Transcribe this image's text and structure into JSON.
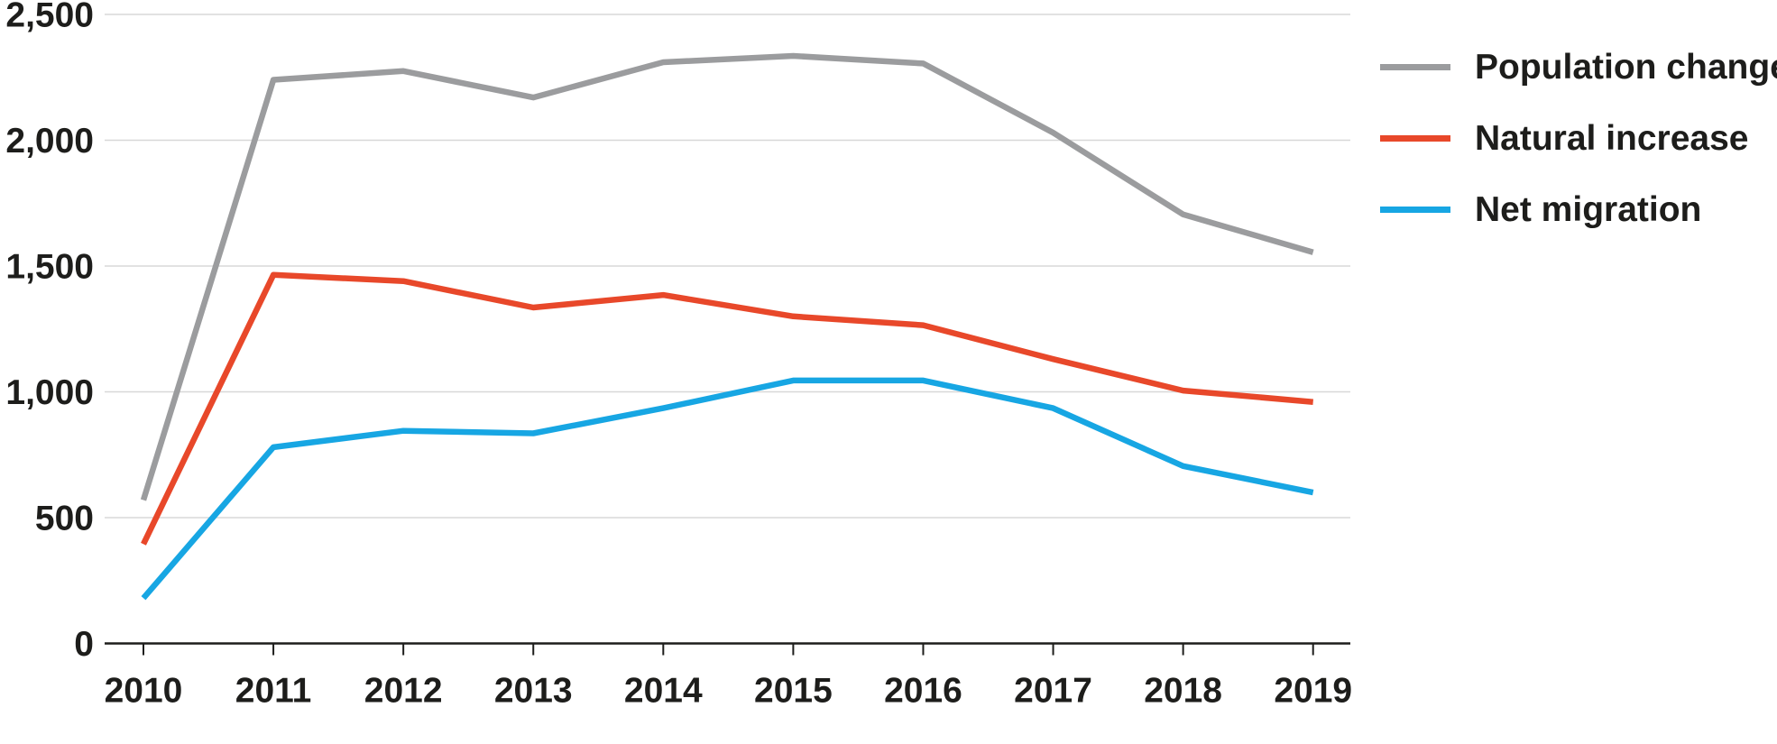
{
  "chart_data": {
    "type": "line",
    "title": "",
    "xlabel": "",
    "ylabel": "",
    "x": [
      2010,
      2011,
      2012,
      2013,
      2014,
      2015,
      2016,
      2017,
      2018,
      2019
    ],
    "x_tick_labels": [
      "2010",
      "2011",
      "2012",
      "2013",
      "2014",
      "2015",
      "2016",
      "2017",
      "2018",
      "2019"
    ],
    "series": [
      {
        "name": "Population change",
        "color": "#9b9c9e",
        "values": [
          570,
          2240,
          2275,
          2170,
          2310,
          2335,
          2305,
          2030,
          1705,
          1555
        ]
      },
      {
        "name": "Natural increase",
        "color": "#e8482a",
        "values": [
          395,
          1465,
          1440,
          1335,
          1385,
          1300,
          1265,
          1130,
          1005,
          960
        ]
      },
      {
        "name": "Net migration",
        "color": "#17a6e3",
        "values": [
          180,
          780,
          845,
          835,
          935,
          1045,
          1045,
          935,
          705,
          600
        ]
      }
    ],
    "ylim": [
      0,
      2500
    ],
    "yticks": [
      0,
      500,
      1000,
      1500,
      2000,
      2500
    ],
    "ytick_labels": [
      "0",
      "500",
      "1,000",
      "1,500",
      "2,000",
      "2,500"
    ],
    "grid": true,
    "legend_position": "right"
  },
  "colors": {
    "background": "#ffffff",
    "axis_text": "#1d1d1b",
    "axis_line": "#1d1d1b",
    "gridline": "#d8d8d8"
  }
}
